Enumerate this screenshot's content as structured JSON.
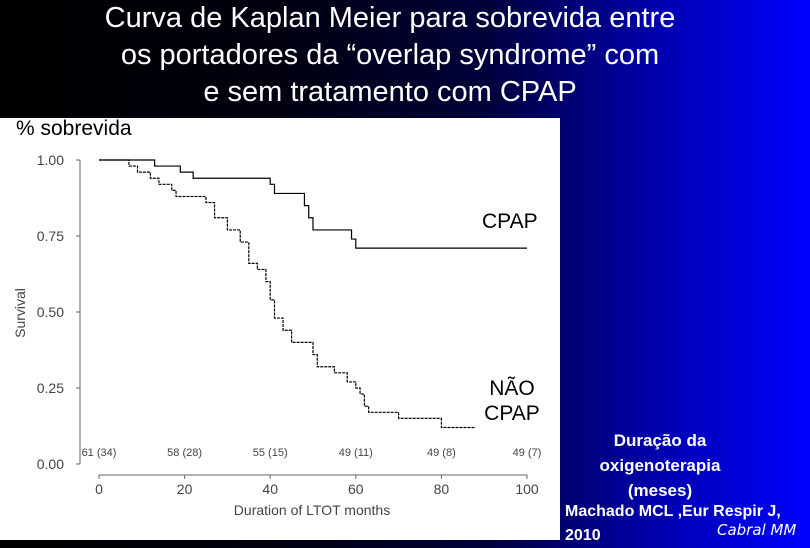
{
  "slide": {
    "title_lines": [
      "Curva de Kaplan Meier para sobrevida entre",
      "os portadores da “overlap syndrome” com",
      "e sem tratamento com CPAP"
    ],
    "y_caption": "% sobrevida",
    "duration_lines": [
      "Duração da",
      "oxigenoterapia",
      "(meses)"
    ],
    "citation_lines": [
      "Machado MCL ,Eur Respir J,",
      "2010"
    ],
    "author": "Cabral MM"
  },
  "chart_data": {
    "type": "line",
    "xlabel": "Duration of LTOT months",
    "ylabel": "Survival",
    "xlim": [
      0,
      100
    ],
    "ylim": [
      0,
      1
    ],
    "x_ticks": [
      "0",
      "20",
      "40",
      "60",
      "80",
      "100"
    ],
    "y_ticks": [
      "0.00",
      "0.25",
      "0.50",
      "0.75",
      "1.00"
    ],
    "series": [
      {
        "name": "CPAP",
        "step": true,
        "color": "#000000",
        "x": [
          0,
          13,
          19,
          22,
          40,
          41,
          48,
          49,
          50,
          59,
          60,
          100
        ],
        "y": [
          1.0,
          0.98,
          0.96,
          0.94,
          0.92,
          0.89,
          0.85,
          0.81,
          0.77,
          0.74,
          0.71,
          0.71
        ]
      },
      {
        "name": "NÃO CPAP",
        "step": true,
        "color": "#000000",
        "x": [
          0,
          7,
          9,
          12,
          14,
          17,
          18,
          25,
          27,
          30,
          33,
          35,
          37,
          39,
          40,
          41,
          43,
          45,
          50,
          51,
          55,
          58,
          60,
          61,
          62,
          63,
          67,
          70,
          72,
          80,
          82,
          83,
          88
        ],
        "y": [
          1.0,
          0.98,
          0.96,
          0.94,
          0.92,
          0.9,
          0.88,
          0.86,
          0.81,
          0.77,
          0.73,
          0.66,
          0.64,
          0.6,
          0.54,
          0.48,
          0.44,
          0.4,
          0.36,
          0.32,
          0.3,
          0.27,
          0.25,
          0.23,
          0.19,
          0.17,
          0.17,
          0.15,
          0.15,
          0.12,
          0.12,
          0.12,
          0.12
        ]
      }
    ],
    "at_risk": [
      {
        "x": 0,
        "label": "61 (34)"
      },
      {
        "x": 20,
        "label": "58 (28)"
      },
      {
        "x": 40,
        "label": "55 (15)"
      },
      {
        "x": 60,
        "label": "49 (11)"
      },
      {
        "x": 80,
        "label": "49 (8)"
      },
      {
        "x": 100,
        "label": "49 (7)"
      }
    ],
    "series_labels": {
      "cpap": "CPAP",
      "nao_cpap_lines": [
        "NÃO",
        "CPAP"
      ]
    },
    "grid": false
  }
}
